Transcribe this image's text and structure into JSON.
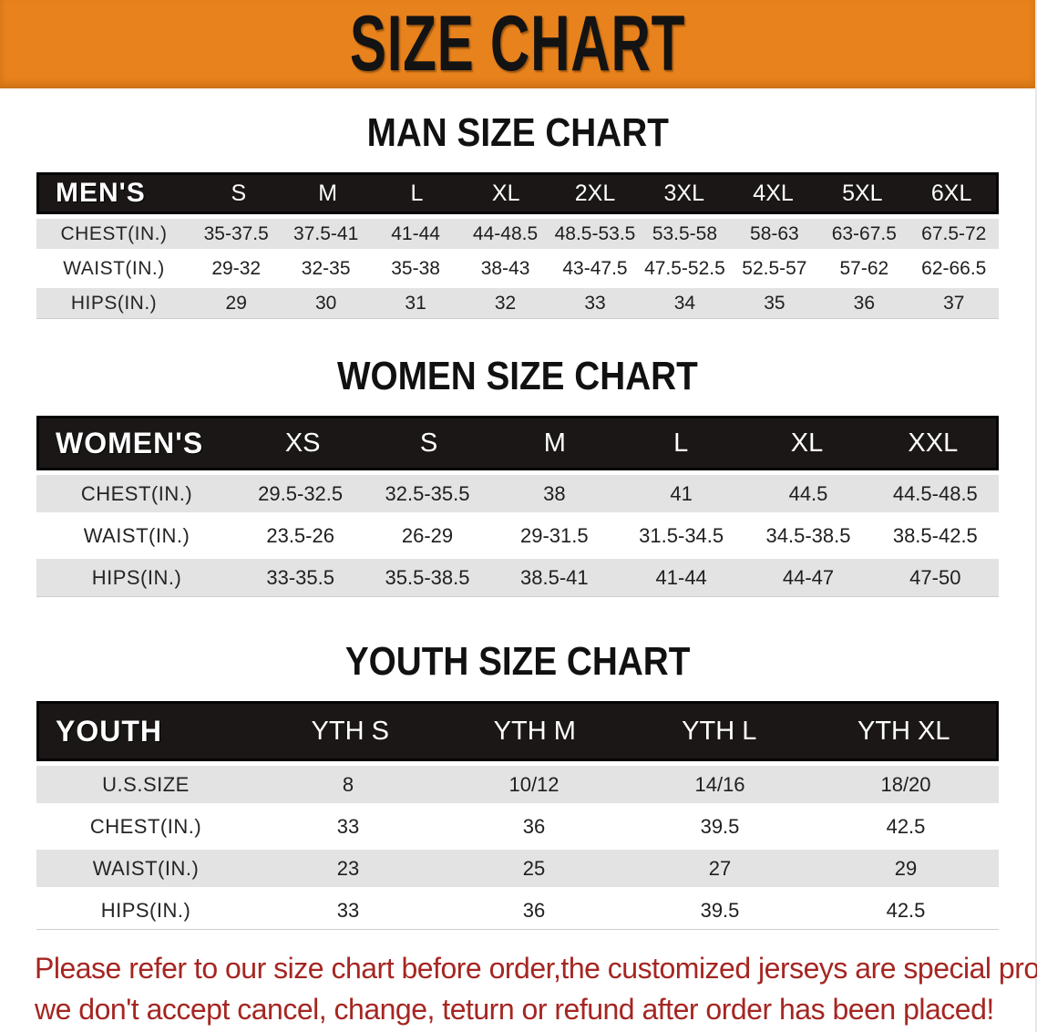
{
  "banner": {
    "title": "SIZE CHART",
    "bg_color": "#E8821C",
    "text_color": "#131313"
  },
  "sections": [
    {
      "title": "MAN SIZE CHART",
      "header_label": "MEN'S",
      "columns": [
        "S",
        "M",
        "L",
        "XL",
        "2XL",
        "3XL",
        "4XL",
        "5XL",
        "6XL"
      ],
      "rows": [
        {
          "label": "CHEST(IN.)",
          "values": [
            "35-37.5",
            "37.5-41",
            "41-44",
            "44-48.5",
            "48.5-53.5",
            "53.5-58",
            "58-63",
            "63-67.5",
            "67.5-72"
          ]
        },
        {
          "label": "WAIST(IN.)",
          "values": [
            "29-32",
            "32-35",
            "35-38",
            "38-43",
            "43-47.5",
            "47.5-52.5",
            "52.5-57",
            "57-62",
            "62-66.5"
          ]
        },
        {
          "label": "HIPS(IN.)",
          "values": [
            "29",
            "30",
            "31",
            "32",
            "33",
            "34",
            "35",
            "36",
            "37"
          ]
        }
      ]
    },
    {
      "title": "WOMEN SIZE CHART",
      "header_label": "WOMEN'S",
      "columns": [
        "XS",
        "S",
        "M",
        "L",
        "XL",
        "XXL"
      ],
      "rows": [
        {
          "label": "CHEST(IN.)",
          "values": [
            "29.5-32.5",
            "32.5-35.5",
            "38",
            "41",
            "44.5",
            "44.5-48.5"
          ]
        },
        {
          "label": "WAIST(IN.)",
          "values": [
            "23.5-26",
            "26-29",
            "29-31.5",
            "31.5-34.5",
            "34.5-38.5",
            "38.5-42.5"
          ]
        },
        {
          "label": "HIPS(IN.)",
          "values": [
            "33-35.5",
            "35.5-38.5",
            "38.5-41",
            "41-44",
            "44-47",
            "47-50"
          ]
        }
      ]
    },
    {
      "title": "YOUTH SIZE CHART",
      "header_label": "YOUTH",
      "columns": [
        "YTH S",
        "YTH M",
        "YTH L",
        "YTH XL"
      ],
      "rows": [
        {
          "label": "U.S.SIZE",
          "values": [
            "8",
            "10/12",
            "14/16",
            "18/20"
          ]
        },
        {
          "label": "CHEST(IN.)",
          "values": [
            "33",
            "36",
            "39.5",
            "42.5"
          ]
        },
        {
          "label": "WAIST(IN.)",
          "values": [
            "23",
            "25",
            "27",
            "29"
          ]
        },
        {
          "label": "HIPS(IN.)",
          "values": [
            "33",
            "36",
            "39.5",
            "42.5"
          ]
        }
      ]
    }
  ],
  "disclaimer": {
    "line1": "Please refer to our size chart before order,the customized jerseys are special products,",
    "line2": "we don't accept cancel, change, teturn or refund after order has been placed!",
    "color": "#A52622"
  },
  "colors": {
    "header_bar": "#1a1716",
    "stripe_row": "#E3E3E3",
    "banner_orange": "#E8821C"
  }
}
